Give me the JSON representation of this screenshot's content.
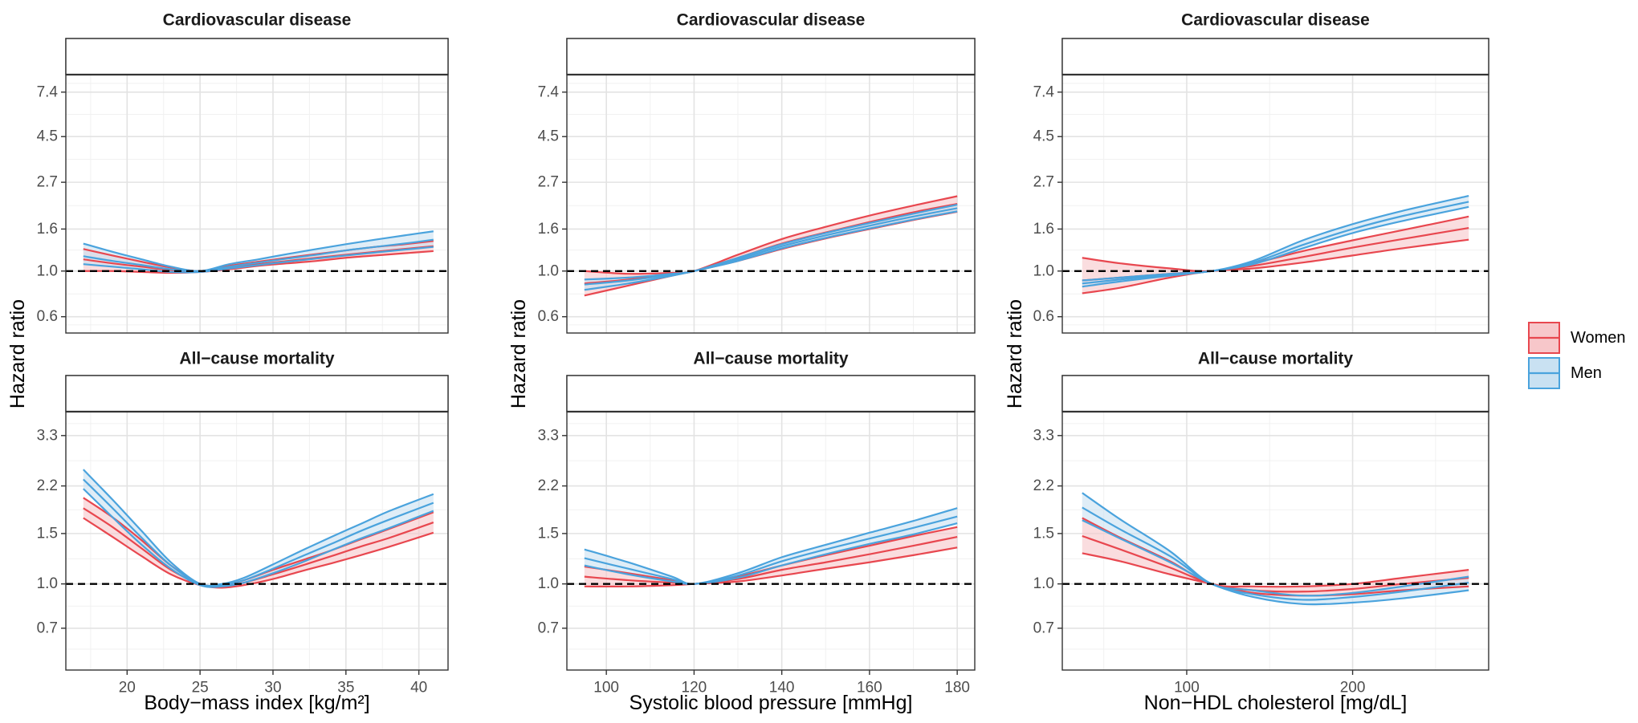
{
  "figure": {
    "y_axis_title": "Hazard ratio",
    "legend": {
      "placement": "right",
      "entries": [
        {
          "label": "Women",
          "line_color": "#e8474f",
          "fill_color": "#f7c7ca"
        },
        {
          "label": "Men",
          "line_color": "#4aa3dd",
          "fill_color": "#c9e1f2"
        }
      ]
    },
    "reference_line": {
      "value": 1.0,
      "style": "dashed",
      "color": "#000000"
    }
  },
  "chart_data": [
    {
      "type": "line",
      "scale": "log",
      "row": 0,
      "col": 0,
      "title": "Cardiovascular disease",
      "xlabel": "Body−mass index [kg/m²]",
      "ylabel": "Hazard ratio",
      "xlim": [
        15.8,
        42
      ],
      "ylim": [
        0.5,
        9.0
      ],
      "xticks": [
        20,
        25,
        30,
        35,
        40
      ],
      "xtick_labels": [
        "20",
        "25",
        "30",
        "35",
        "40"
      ],
      "yticks": [
        0.6,
        1.0,
        1.6,
        2.7,
        4.5,
        7.4
      ],
      "ytick_labels": [
        "0.6",
        "1.0",
        "1.6",
        "2.7",
        "4.5",
        "7.4"
      ],
      "series": [
        {
          "name": "Women",
          "x": [
            17,
            19,
            21,
            23,
            25,
            27,
            29,
            31,
            33,
            35,
            37,
            39,
            41
          ],
          "values": [
            1.14,
            1.09,
            1.05,
            1.01,
            1.0,
            1.04,
            1.08,
            1.12,
            1.16,
            1.2,
            1.24,
            1.28,
            1.32
          ],
          "lower": [
            1.0,
            1.0,
            0.99,
            0.98,
            0.99,
            1.02,
            1.06,
            1.09,
            1.12,
            1.16,
            1.19,
            1.22,
            1.25
          ],
          "upper": [
            1.28,
            1.19,
            1.11,
            1.04,
            1.0,
            1.06,
            1.11,
            1.16,
            1.21,
            1.26,
            1.31,
            1.35,
            1.4
          ]
        },
        {
          "name": "Men",
          "x": [
            17,
            19,
            21,
            23,
            25,
            27,
            29,
            31,
            33,
            35,
            37,
            39,
            41
          ],
          "values": [
            1.18,
            1.12,
            1.07,
            1.02,
            1.0,
            1.05,
            1.1,
            1.15,
            1.2,
            1.26,
            1.31,
            1.36,
            1.42
          ],
          "lower": [
            1.08,
            1.05,
            1.02,
            0.99,
            0.99,
            1.03,
            1.07,
            1.11,
            1.15,
            1.19,
            1.23,
            1.27,
            1.31
          ],
          "upper": [
            1.36,
            1.24,
            1.14,
            1.05,
            1.0,
            1.08,
            1.14,
            1.21,
            1.28,
            1.35,
            1.42,
            1.49,
            1.56
          ]
        }
      ]
    },
    {
      "type": "line",
      "scale": "log",
      "row": 0,
      "col": 1,
      "title": "Cardiovascular disease",
      "xlabel": "Systolic blood pressure [mmHg]",
      "ylabel": "Hazard ratio",
      "xlim": [
        91,
        184
      ],
      "ylim": [
        0.5,
        9.0
      ],
      "xticks": [
        100,
        120,
        140,
        160,
        180
      ],
      "xtick_labels": [
        "100",
        "120",
        "140",
        "160",
        "180"
      ],
      "yticks": [
        0.6,
        1.0,
        1.6,
        2.7,
        4.5,
        7.4
      ],
      "ytick_labels": [
        "0.6",
        "1.0",
        "1.6",
        "2.7",
        "4.5",
        "7.4"
      ],
      "series": [
        {
          "name": "Women",
          "x": [
            95,
            105,
            115,
            120,
            130,
            140,
            150,
            160,
            170,
            180
          ],
          "values": [
            0.87,
            0.91,
            0.97,
            1.0,
            1.16,
            1.36,
            1.54,
            1.73,
            1.93,
            2.12
          ],
          "lower": [
            0.76,
            0.85,
            0.95,
            1.0,
            1.12,
            1.28,
            1.44,
            1.6,
            1.77,
            1.94
          ],
          "upper": [
            1.0,
            0.97,
            0.98,
            1.0,
            1.2,
            1.43,
            1.64,
            1.86,
            2.08,
            2.31
          ]
        },
        {
          "name": "Men",
          "x": [
            95,
            105,
            115,
            120,
            130,
            140,
            150,
            160,
            170,
            180
          ],
          "values": [
            0.86,
            0.9,
            0.96,
            1.0,
            1.14,
            1.32,
            1.49,
            1.66,
            1.84,
            2.02
          ],
          "lower": [
            0.81,
            0.87,
            0.95,
            1.0,
            1.12,
            1.29,
            1.45,
            1.61,
            1.78,
            1.95
          ],
          "upper": [
            0.91,
            0.93,
            0.97,
            1.0,
            1.16,
            1.35,
            1.53,
            1.71,
            1.9,
            2.1
          ]
        }
      ]
    },
    {
      "type": "line",
      "scale": "log",
      "row": 0,
      "col": 2,
      "title": "Cardiovascular disease",
      "xlabel": "Non−HDL cholesterol [mg/dL]",
      "ylabel": "Hazard ratio",
      "xlim": [
        25,
        282
      ],
      "ylim": [
        0.5,
        9.0
      ],
      "xticks": [
        100,
        200
      ],
      "xtick_labels": [
        "100",
        "200"
      ],
      "yticks": [
        0.6,
        1.0,
        1.6,
        2.7,
        4.5,
        7.4
      ],
      "ytick_labels": [
        "0.6",
        "1.0",
        "1.6",
        "2.7",
        "4.5",
        "7.4"
      ],
      "series": [
        {
          "name": "Women",
          "x": [
            37,
            60,
            90,
            115,
            140,
            170,
            200,
            230,
            270
          ],
          "values": [
            0.9,
            0.93,
            0.97,
            1.0,
            1.06,
            1.17,
            1.3,
            1.43,
            1.62
          ],
          "lower": [
            0.78,
            0.83,
            0.93,
            1.0,
            1.03,
            1.1,
            1.19,
            1.29,
            1.42
          ],
          "upper": [
            1.16,
            1.09,
            1.03,
            1.0,
            1.09,
            1.25,
            1.41,
            1.58,
            1.84
          ]
        },
        {
          "name": "Men",
          "x": [
            37,
            60,
            90,
            115,
            140,
            170,
            200,
            230,
            270
          ],
          "values": [
            0.87,
            0.91,
            0.96,
            1.0,
            1.1,
            1.34,
            1.6,
            1.85,
            2.17
          ],
          "lower": [
            0.84,
            0.89,
            0.95,
            1.0,
            1.08,
            1.29,
            1.53,
            1.75,
            2.05
          ],
          "upper": [
            0.9,
            0.93,
            0.97,
            1.0,
            1.12,
            1.41,
            1.69,
            1.96,
            2.32
          ]
        }
      ]
    },
    {
      "type": "line",
      "scale": "log",
      "row": 1,
      "col": 0,
      "title": "All−cause mortality",
      "xlabel": "Body−mass index [kg/m²]",
      "ylabel": "Hazard ratio",
      "xlim": [
        15.8,
        42
      ],
      "ylim": [
        0.5,
        4.0
      ],
      "xticks": [
        20,
        25,
        30,
        35,
        40
      ],
      "xtick_labels": [
        "20",
        "25",
        "30",
        "35",
        "40"
      ],
      "yticks": [
        0.7,
        1.0,
        1.5,
        2.2,
        3.3
      ],
      "ytick_labels": [
        "0.7",
        "1.0",
        "1.5",
        "2.2",
        "3.3"
      ],
      "series": [
        {
          "name": "Women",
          "x": [
            17,
            19,
            21,
            23,
            25,
            26.5,
            28,
            30,
            32,
            34,
            36,
            38,
            41
          ],
          "values": [
            1.84,
            1.58,
            1.33,
            1.12,
            1.0,
            0.98,
            1.01,
            1.08,
            1.16,
            1.25,
            1.35,
            1.45,
            1.64
          ],
          "lower": [
            1.7,
            1.46,
            1.25,
            1.08,
            0.99,
            0.97,
            0.99,
            1.04,
            1.11,
            1.18,
            1.26,
            1.35,
            1.51
          ],
          "upper": [
            2.0,
            1.71,
            1.42,
            1.16,
            1.0,
            0.99,
            1.03,
            1.12,
            1.21,
            1.31,
            1.43,
            1.56,
            1.78
          ]
        },
        {
          "name": "Men",
          "x": [
            17,
            19,
            21,
            23,
            25,
            26.5,
            28,
            30,
            32,
            34,
            36,
            38,
            41
          ],
          "values": [
            2.32,
            1.84,
            1.45,
            1.16,
            1.0,
            0.99,
            1.03,
            1.13,
            1.25,
            1.38,
            1.53,
            1.68,
            1.92
          ],
          "lower": [
            2.15,
            1.71,
            1.37,
            1.13,
            0.99,
            0.98,
            1.01,
            1.09,
            1.19,
            1.31,
            1.44,
            1.57,
            1.8
          ],
          "upper": [
            2.51,
            1.97,
            1.53,
            1.19,
            1.0,
            1.0,
            1.05,
            1.17,
            1.31,
            1.46,
            1.62,
            1.8,
            2.06
          ]
        }
      ]
    },
    {
      "type": "line",
      "scale": "log",
      "row": 1,
      "col": 1,
      "title": "All−cause mortality",
      "xlabel": "Systolic blood pressure [mmHg]",
      "ylabel": "Hazard ratio",
      "xlim": [
        91,
        184
      ],
      "ylim": [
        0.5,
        4.0
      ],
      "xticks": [
        100,
        120,
        140,
        160,
        180
      ],
      "xtick_labels": [
        "100",
        "120",
        "140",
        "160",
        "180"
      ],
      "yticks": [
        0.7,
        1.0,
        1.5,
        2.2,
        3.3
      ],
      "ytick_labels": [
        "0.7",
        "1.0",
        "1.5",
        "2.2",
        "3.3"
      ],
      "series": [
        {
          "name": "Women",
          "x": [
            95,
            105,
            115,
            120,
            130,
            140,
            150,
            160,
            170,
            180
          ],
          "values": [
            1.06,
            1.03,
            1.01,
            1.0,
            1.04,
            1.12,
            1.19,
            1.27,
            1.36,
            1.46
          ],
          "lower": [
            0.98,
            0.98,
            0.99,
            1.0,
            1.02,
            1.07,
            1.13,
            1.19,
            1.26,
            1.34
          ],
          "upper": [
            1.15,
            1.09,
            1.03,
            1.0,
            1.06,
            1.16,
            1.26,
            1.36,
            1.47,
            1.58
          ]
        },
        {
          "name": "Men",
          "x": [
            95,
            105,
            115,
            120,
            130,
            140,
            150,
            160,
            170,
            180
          ],
          "values": [
            1.23,
            1.13,
            1.04,
            1.0,
            1.07,
            1.2,
            1.32,
            1.44,
            1.57,
            1.72
          ],
          "lower": [
            1.16,
            1.08,
            1.02,
            1.0,
            1.05,
            1.16,
            1.27,
            1.38,
            1.49,
            1.63
          ],
          "upper": [
            1.32,
            1.19,
            1.06,
            1.0,
            1.09,
            1.24,
            1.37,
            1.51,
            1.66,
            1.84
          ]
        }
      ]
    },
    {
      "type": "line",
      "scale": "log",
      "row": 1,
      "col": 2,
      "title": "All−cause mortality",
      "xlabel": "Non−HDL cholesterol [mg/dL]",
      "ylabel": "Hazard ratio",
      "xlim": [
        25,
        282
      ],
      "ylim": [
        0.5,
        4.0
      ],
      "xticks": [
        100,
        200
      ],
      "xtick_labels": [
        "100",
        "200"
      ],
      "yticks": [
        0.7,
        1.0,
        1.5,
        2.2,
        3.3
      ],
      "ytick_labels": [
        "0.7",
        "1.0",
        "1.5",
        "2.2",
        "3.3"
      ],
      "series": [
        {
          "name": "Women",
          "x": [
            37,
            60,
            90,
            115,
            140,
            170,
            200,
            230,
            270
          ],
          "values": [
            1.47,
            1.32,
            1.14,
            1.0,
            0.95,
            0.94,
            0.96,
            1.0,
            1.05
          ],
          "lower": [
            1.28,
            1.2,
            1.08,
            1.0,
            0.93,
            0.91,
            0.92,
            0.95,
            0.98
          ],
          "upper": [
            1.7,
            1.45,
            1.2,
            1.0,
            0.98,
            0.98,
            1.0,
            1.05,
            1.12
          ]
        },
        {
          "name": "Men",
          "x": [
            37,
            60,
            90,
            115,
            140,
            170,
            200,
            230,
            270
          ],
          "values": [
            1.85,
            1.55,
            1.25,
            1.0,
            0.92,
            0.88,
            0.9,
            0.94,
            1.01
          ],
          "lower": [
            1.67,
            1.44,
            1.19,
            1.0,
            0.9,
            0.85,
            0.86,
            0.89,
            0.95
          ],
          "upper": [
            2.08,
            1.68,
            1.3,
            1.0,
            0.95,
            0.91,
            0.93,
            0.98,
            1.06
          ]
        }
      ]
    }
  ]
}
